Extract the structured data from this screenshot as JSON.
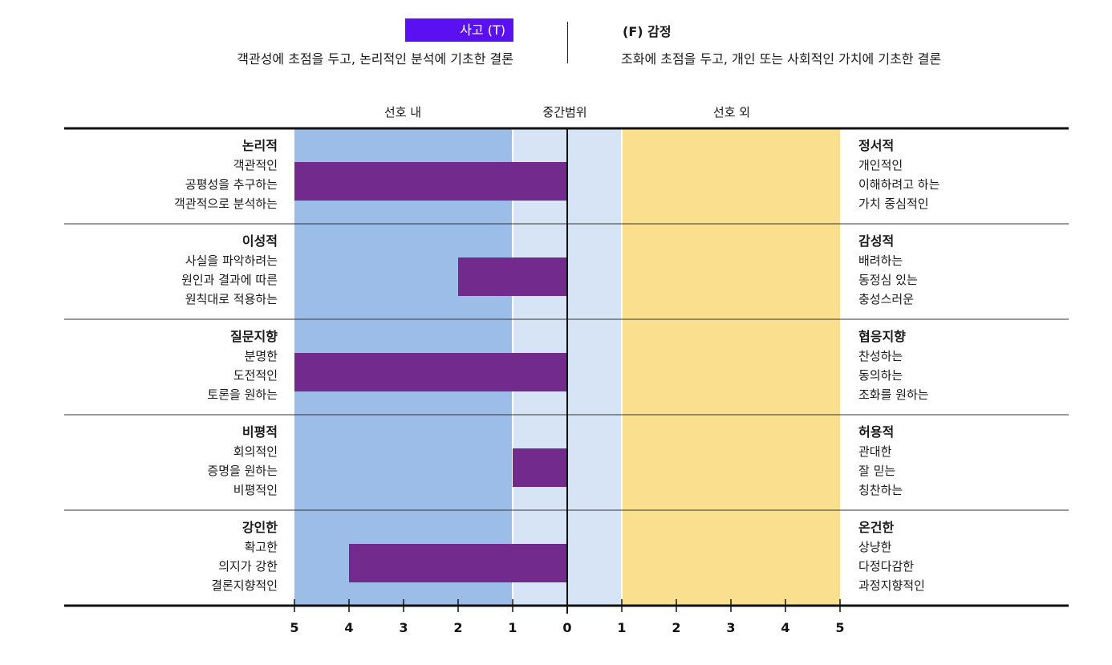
{
  "header": {
    "left_title": "사고 (T)",
    "left_desc": "객관성에 초점을 두고, 논리적인 분석에 기초한 결론",
    "right_title": "(F) 감정",
    "right_desc": "조화에 초점을 두고, 개인 또는 사회적인 가치에 기초한 결론"
  },
  "zones": {
    "preferred": "선호 내",
    "middle": "중간범위",
    "nonpreferred": "선호 외"
  },
  "colors": {
    "preferred_bg": "#9dbde9",
    "middle_bg": "#d7e4f6",
    "nonpreferred_bg": "#f9df8e",
    "bar": "#722a8c",
    "title_bg": "#5a10f0"
  },
  "chart_data": {
    "type": "bar",
    "orientation": "horizontal",
    "title": "",
    "axis_ticks": [
      "5",
      "4",
      "3",
      "2",
      "1",
      "0",
      "1",
      "2",
      "3",
      "4",
      "5"
    ],
    "axis_range": [
      -5,
      5
    ],
    "series": [
      {
        "name": "사고 (T)",
        "values": [
          5,
          2,
          5,
          1,
          4
        ]
      }
    ],
    "rows": [
      {
        "left_title": "논리적",
        "left_items": [
          "객관적인",
          "공평성을 추구하는",
          "객관적으로 분석하는"
        ],
        "right_title": "정서적",
        "right_items": [
          "개인적인",
          "이해하려고 하는",
          "가치 중심적인"
        ],
        "value": 5
      },
      {
        "left_title": "이성적",
        "left_items": [
          "사실을 파악하려는",
          "원인과 결과에 따른",
          "원칙대로 적용하는"
        ],
        "right_title": "감성적",
        "right_items": [
          "배려하는",
          "동정심 있는",
          "충성스러운"
        ],
        "value": 2
      },
      {
        "left_title": "질문지향",
        "left_items": [
          "분명한",
          "도전적인",
          "토론을 원하는"
        ],
        "right_title": "협응지향",
        "right_items": [
          "찬성하는",
          "동의하는",
          "조화를 원하는"
        ],
        "value": 5
      },
      {
        "left_title": "비평적",
        "left_items": [
          "회의적인",
          "증명을 원하는",
          "비평적인"
        ],
        "right_title": "허용적",
        "right_items": [
          "관대한",
          "잘 믿는",
          "칭찬하는"
        ],
        "value": 1
      },
      {
        "left_title": "강인한",
        "left_items": [
          "확고한",
          "의지가 강한",
          "결론지향적인"
        ],
        "right_title": "온건한",
        "right_items": [
          "상냥한",
          "다정다감한",
          "과정지향적인"
        ],
        "value": 4
      }
    ]
  }
}
